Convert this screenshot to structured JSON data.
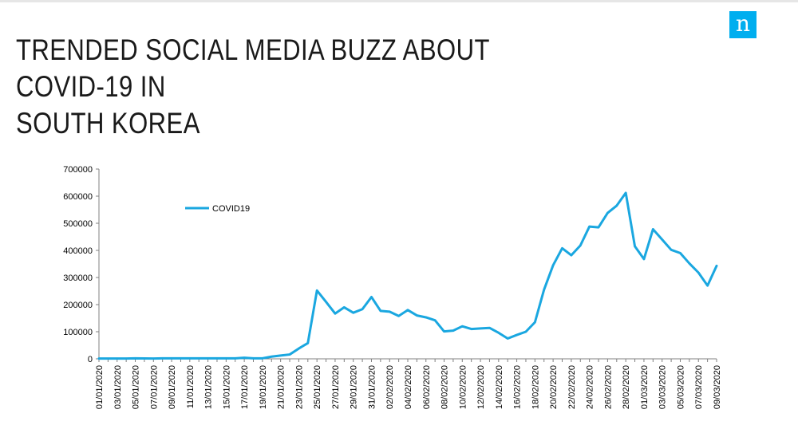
{
  "header": {
    "title_line1": "TRENDED SOCIAL MEDIA BUZZ ABOUT COVID-19 IN",
    "title_line2": "SOUTH KOREA",
    "logo_letter": "n"
  },
  "colors": {
    "line": "#1aa7e0",
    "logo": "#00aeef",
    "axis": "#808080"
  },
  "chart_data": {
    "type": "line",
    "title": "TRENDED SOCIAL MEDIA BUZZ ABOUT COVID-19 IN SOUTH KOREA",
    "xlabel": "",
    "ylabel": "",
    "ylim": [
      0,
      700000
    ],
    "yticks": [
      0,
      100000,
      200000,
      300000,
      400000,
      500000,
      600000,
      700000
    ],
    "legend": "top-left inside plot",
    "grid": false,
    "x": [
      "01/01/2020",
      "02/01/2020",
      "03/01/2020",
      "04/01/2020",
      "05/01/2020",
      "06/01/2020",
      "07/01/2020",
      "08/01/2020",
      "09/01/2020",
      "10/01/2020",
      "11/01/2020",
      "12/01/2020",
      "13/01/2020",
      "14/01/2020",
      "15/01/2020",
      "16/01/2020",
      "17/01/2020",
      "18/01/2020",
      "19/01/2020",
      "20/01/2020",
      "21/01/2020",
      "22/01/2020",
      "23/01/2020",
      "24/01/2020",
      "25/01/2020",
      "26/01/2020",
      "27/01/2020",
      "28/01/2020",
      "29/01/2020",
      "30/01/2020",
      "31/01/2020",
      "01/02/2020",
      "02/02/2020",
      "03/02/2020",
      "04/02/2020",
      "05/02/2020",
      "06/02/2020",
      "07/02/2020",
      "08/02/2020",
      "09/02/2020",
      "10/02/2020",
      "11/02/2020",
      "12/02/2020",
      "13/02/2020",
      "14/02/2020",
      "15/02/2020",
      "16/02/2020",
      "17/02/2020",
      "18/02/2020",
      "19/02/2020",
      "20/02/2020",
      "21/02/2020",
      "22/02/2020",
      "23/02/2020",
      "24/02/2020",
      "25/02/2020",
      "26/02/2020",
      "27/02/2020",
      "28/02/2020",
      "29/02/2020",
      "01/03/2020",
      "02/03/2020",
      "03/03/2020",
      "04/03/2020",
      "05/03/2020",
      "06/03/2020",
      "07/03/2020",
      "08/03/2020",
      "09/03/2020"
    ],
    "tick_labels": [
      "01/01/2020",
      "03/01/2020",
      "05/01/2020",
      "07/01/2020",
      "09/01/2020",
      "11/01/2020",
      "13/01/2020",
      "15/01/2020",
      "17/01/2020",
      "19/01/2020",
      "21/01/2020",
      "23/01/2020",
      "25/01/2020",
      "27/01/2020",
      "29/01/2020",
      "31/01/2020",
      "02/02/2020",
      "04/02/2020",
      "06/02/2020",
      "08/02/2020",
      "10/02/2020",
      "12/02/2020",
      "14/02/2020",
      "16/02/2020",
      "18/02/2020",
      "20/02/2020",
      "22/02/2020",
      "24/02/2020",
      "26/02/2020",
      "28/02/2020",
      "01/03/2020",
      "03/03/2020",
      "05/03/2020",
      "07/03/2020",
      "09/03/2020"
    ],
    "series": [
      {
        "name": "COVID19",
        "color": "#1aa7e0",
        "values": [
          1000,
          1000,
          1000,
          1000,
          2000,
          1500,
          1000,
          2000,
          2000,
          2000,
          2000,
          2000,
          2000,
          2000,
          2000,
          2000,
          4000,
          2000,
          2000,
          8000,
          12000,
          16000,
          38000,
          58000,
          252000,
          210000,
          167000,
          190000,
          170000,
          183000,
          228000,
          177000,
          174000,
          158000,
          180000,
          160000,
          153000,
          142000,
          101000,
          104000,
          120000,
          110000,
          112000,
          114000,
          96000,
          75000,
          88000,
          100000,
          135000,
          255000,
          345000,
          408000,
          382000,
          418000,
          488000,
          485000,
          538000,
          565000,
          612000,
          415000,
          368000,
          478000,
          440000,
          402000,
          390000,
          352000,
          318000,
          270000,
          343000
        ]
      }
    ]
  }
}
